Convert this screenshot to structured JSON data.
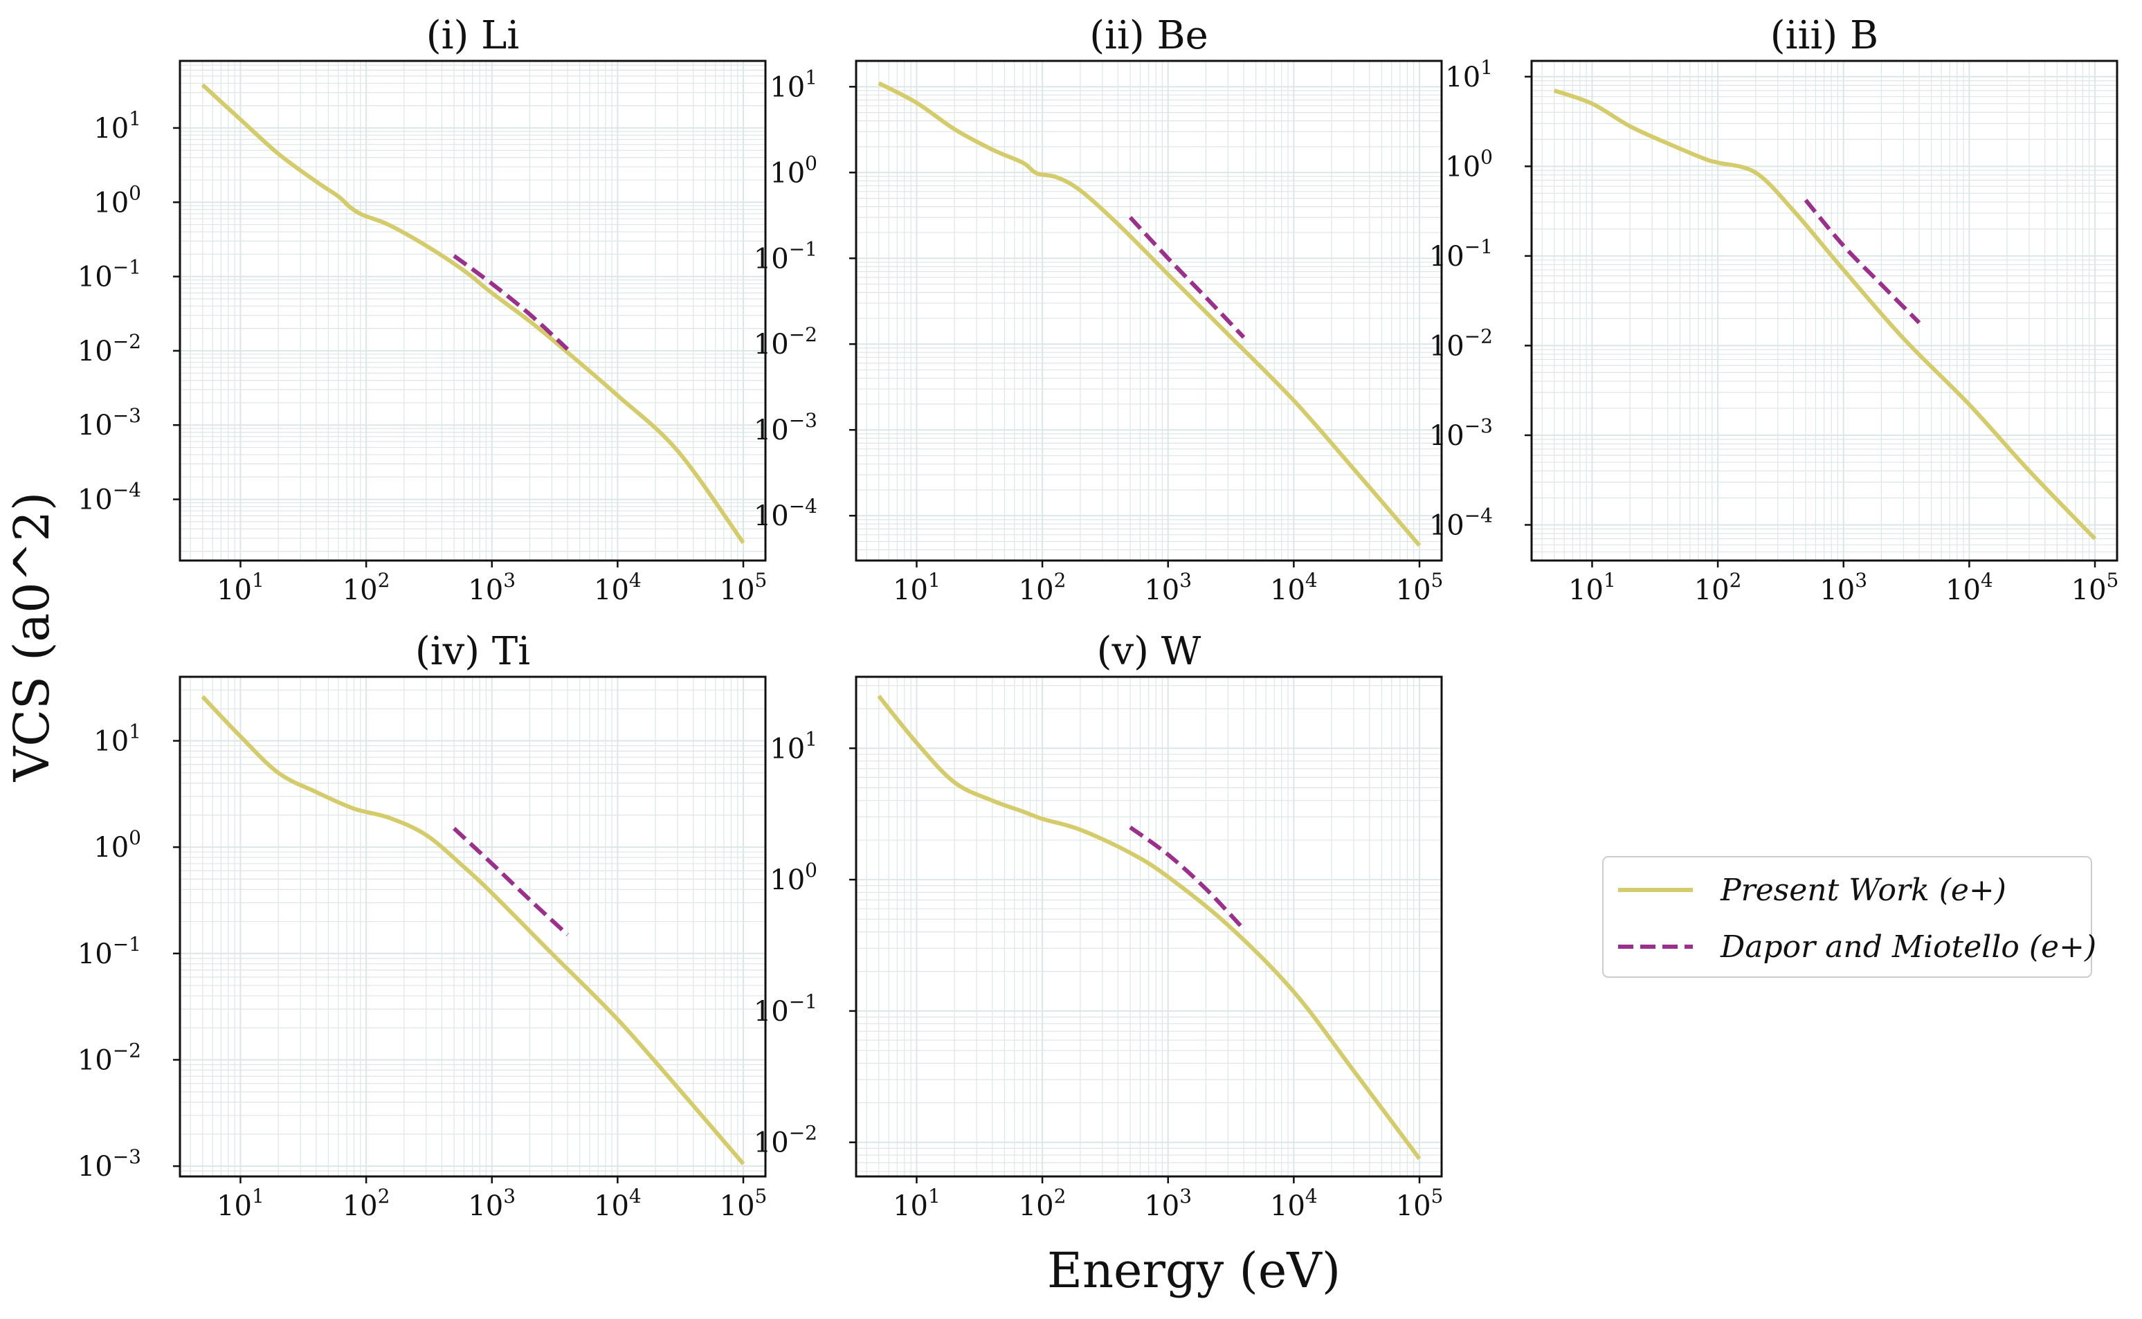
{
  "chart_data": {
    "type": "line",
    "xlabel": "Energy (eV)",
    "ylabel": "VCS (a0^2)",
    "xscale": "log",
    "yscale": "log",
    "grid": true,
    "legend": {
      "placement": "right",
      "entries": [
        {
          "name": "Present Work (e+)",
          "style": "solid",
          "color": "#d4cc6a"
        },
        {
          "name": "Dapor and Miotello (e+)",
          "style": "dashed",
          "color": "#9b2f8c"
        }
      ]
    },
    "colors": {
      "present": "#d4cc6a",
      "dapor": "#9b2f8c",
      "grid": "#dde6e6",
      "axis": "#111111"
    },
    "x_tick_values": [
      10,
      100,
      1000,
      10000,
      100000
    ],
    "x_tick_labels": [
      "10^1",
      "10^2",
      "10^3",
      "10^4",
      "10^5"
    ],
    "xlim": [
      3.3,
      150000
    ],
    "panels": [
      {
        "title": "(i) Li",
        "ylim": [
          1.5e-05,
          80
        ],
        "y_tick_values": [
          10,
          1,
          0.1,
          0.01,
          0.001,
          0.0001
        ],
        "y_tick_labels": [
          "10^1",
          "10^0",
          "10^-1",
          "10^-2",
          "10^-3",
          "10^-4"
        ],
        "series": [
          {
            "name": "Present Work (e+)",
            "x": [
              5,
              10,
              20,
              40,
              60,
              75,
              95,
              150,
              300,
              600,
              1000,
              2000,
              4000,
              10000,
              30000,
              100000
            ],
            "y": [
              38,
              13,
              4.5,
              1.9,
              1.2,
              0.85,
              0.67,
              0.5,
              0.26,
              0.12,
              0.06,
              0.025,
              0.0095,
              0.0025,
              0.00045,
              2.6e-05
            ]
          },
          {
            "name": "Dapor and Miotello (e+)",
            "x": [
              500,
              1000,
              2000,
              4000
            ],
            "y": [
              0.19,
              0.08,
              0.031,
              0.0105
            ]
          }
        ]
      },
      {
        "title": "(ii) Be",
        "ylim": [
          3e-05,
          20
        ],
        "y_tick_values": [
          10,
          1,
          0.1,
          0.01,
          0.001,
          0.0001
        ],
        "y_tick_labels": [
          "10^1",
          "10^0",
          "10^-1",
          "10^-2",
          "10^-3",
          "10^-4"
        ],
        "series": [
          {
            "name": "Present Work (e+)",
            "x": [
              5,
              10,
              20,
              40,
              70,
              90,
              130,
              200,
              400,
              1000,
              3000,
              10000,
              30000,
              100000
            ],
            "y": [
              11,
              6.5,
              3.2,
              1.85,
              1.3,
              0.98,
              0.88,
              0.62,
              0.25,
              0.065,
              0.013,
              0.0022,
              0.00035,
              4.5e-05
            ]
          },
          {
            "name": "Dapor and Miotello (e+)",
            "x": [
              500,
              1000,
              2000,
              4000
            ],
            "y": [
              0.3,
              0.1,
              0.035,
              0.012
            ]
          }
        ]
      },
      {
        "title": "(iii) B",
        "ylim": [
          4e-05,
          15
        ],
        "y_tick_values": [
          10,
          1,
          0.1,
          0.01,
          0.001,
          0.0001
        ],
        "y_tick_labels": [
          "10^1",
          "10^0",
          "10^-1",
          "10^-2",
          "10^-3",
          "10^-4"
        ],
        "series": [
          {
            "name": "Present Work (e+)",
            "x": [
              5,
              10,
              20,
              40,
              80,
              100,
              200,
              400,
              1000,
              3000,
              10000,
              30000,
              100000
            ],
            "y": [
              7,
              5,
              2.8,
              1.8,
              1.2,
              1.1,
              0.85,
              0.32,
              0.07,
              0.012,
              0.0022,
              0.0004,
              7e-05
            ]
          },
          {
            "name": "Dapor and Miotello (e+)",
            "x": [
              500,
              1000,
              2000,
              4000
            ],
            "y": [
              0.42,
              0.13,
              0.048,
              0.018
            ]
          }
        ]
      },
      {
        "title": "(iv) Ti",
        "ylim": [
          0.0008,
          40
        ],
        "y_tick_values": [
          10,
          1,
          0.1,
          0.01,
          0.001
        ],
        "y_tick_labels": [
          "10^1",
          "10^0",
          "10^-1",
          "10^-2",
          "10^-3"
        ],
        "series": [
          {
            "name": "Present Work (e+)",
            "x": [
              5,
              10,
              20,
              40,
              80,
              150,
              300,
              600,
              1000,
              3000,
              10000,
              30000,
              100000
            ],
            "y": [
              26,
              11,
              5,
              3.3,
              2.3,
              1.9,
              1.3,
              0.65,
              0.37,
              0.1,
              0.024,
              0.0055,
              0.00105
            ]
          },
          {
            "name": "Dapor and Miotello (e+)",
            "x": [
              500,
              1000,
              2000,
              4000
            ],
            "y": [
              1.5,
              0.7,
              0.32,
              0.15
            ]
          }
        ]
      },
      {
        "title": "(v) W",
        "ylim": [
          0.0055,
          35
        ],
        "y_tick_values": [
          10,
          1,
          0.1,
          0.01
        ],
        "y_tick_labels": [
          "10^1",
          "10^0",
          "10^-1",
          "10^-2"
        ],
        "series": [
          {
            "name": "Present Work (e+)",
            "x": [
              5,
              10,
              20,
              40,
              70,
              100,
              200,
              500,
              1000,
              3000,
              10000,
              30000,
              100000
            ],
            "y": [
              25,
              11,
              5.5,
              4,
              3.3,
              2.9,
              2.4,
              1.6,
              1.05,
              0.45,
              0.14,
              0.035,
              0.0075
            ]
          },
          {
            "name": "Dapor and Miotello (e+)",
            "x": [
              500,
              1000,
              2000,
              4000
            ],
            "y": [
              2.5,
              1.55,
              0.85,
              0.42
            ]
          }
        ]
      }
    ]
  }
}
